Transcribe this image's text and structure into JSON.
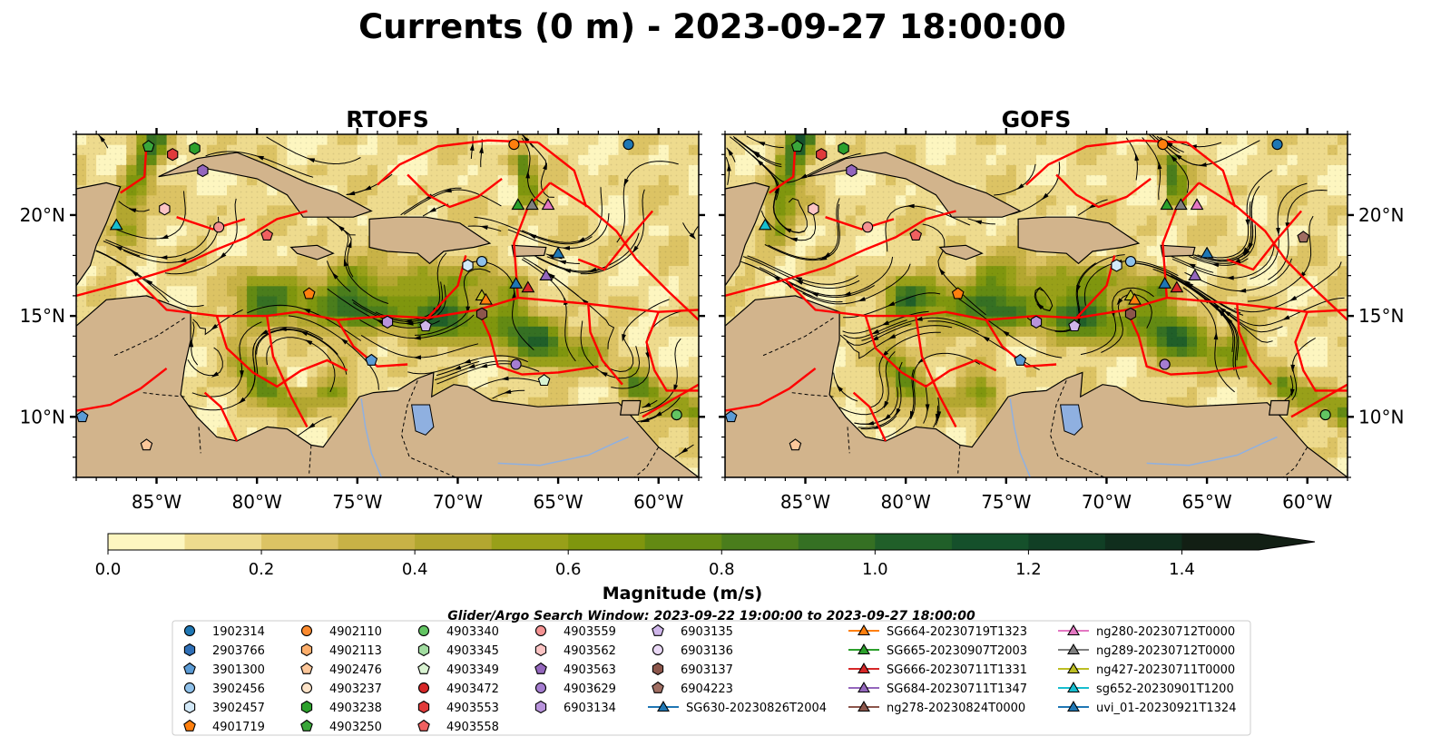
{
  "title": "Currents (0 m) - 2023-09-27 18:00:00",
  "colors": {
    "land": "#d2b48c",
    "river": "#8fb0e0",
    "eez": "#ff0000",
    "ramp": [
      "#fdf6c0",
      "#eedb8e",
      "#dcc364",
      "#c8b246",
      "#b3a730",
      "#98a019",
      "#7f960e",
      "#638a13",
      "#4a7d1c",
      "#357023",
      "#205f29",
      "#15502b",
      "#113f25",
      "#102e1d",
      "#121f14"
    ]
  },
  "chart_data": [
    {
      "type": "map",
      "title": "RTOFS",
      "xlim": [
        -89,
        -58
      ],
      "ylim": [
        7,
        24
      ],
      "x_ticks": [
        -85,
        -80,
        -75,
        -70,
        -65,
        -60
      ],
      "y_ticks": [
        10,
        15,
        20
      ],
      "x_tick_labels": [
        "85°W",
        "80°W",
        "75°W",
        "70°W",
        "65°W",
        "60°W"
      ],
      "y_tick_labels": [
        "10°N",
        "15°N",
        "20°N"
      ],
      "y_labels_side": "left"
    },
    {
      "type": "map",
      "title": "GOFS",
      "xlim": [
        -89,
        -58
      ],
      "ylim": [
        7,
        24
      ],
      "x_ticks": [
        -85,
        -80,
        -75,
        -70,
        -65,
        -60
      ],
      "y_ticks": [
        10,
        15,
        20
      ],
      "x_tick_labels": [
        "85°W",
        "80°W",
        "75°W",
        "70°W",
        "65°W",
        "60°W"
      ],
      "y_tick_labels": [
        "10°N",
        "15°N",
        "20°N"
      ],
      "y_labels_side": "right"
    }
  ],
  "colorbar": {
    "label": "Magnitude (m/s)",
    "vmin": 0.0,
    "vmax": 1.5,
    "extend": "max",
    "ticks": [
      0.0,
      0.2,
      0.4,
      0.6,
      0.8,
      1.0,
      1.2,
      1.4
    ],
    "tick_labels": [
      "0.0",
      "0.2",
      "0.4",
      "0.6",
      "0.8",
      "1.0",
      "1.2",
      "1.4"
    ]
  },
  "legend": {
    "title": "Glider/Argo Search Window: 2023-09-22 19:00:00 to 2023-09-27 18:00:00",
    "columns": [
      [
        {
          "label": "1902314",
          "marker": "circle",
          "color": "#1f77b4"
        },
        {
          "label": "2903766",
          "marker": "hexagon",
          "color": "#2f6fb6"
        },
        {
          "label": "3901300",
          "marker": "pentagon",
          "color": "#5b9bd5"
        },
        {
          "label": "3902456",
          "marker": "circle",
          "color": "#8fc1ea"
        },
        {
          "label": "3902457",
          "marker": "hexagon",
          "color": "#d3e9f8"
        },
        {
          "label": "4901719",
          "marker": "pentagon",
          "color": "#ff7f0e"
        }
      ],
      [
        {
          "label": "4902110",
          "marker": "circle",
          "color": "#fb8a2e"
        },
        {
          "label": "4902113",
          "marker": "hexagon",
          "color": "#fdae6b"
        },
        {
          "label": "4902476",
          "marker": "pentagon",
          "color": "#fdc79a"
        },
        {
          "label": "4903237",
          "marker": "circle",
          "color": "#fde3c8"
        },
        {
          "label": "4903238",
          "marker": "hexagon",
          "color": "#2ca02c"
        },
        {
          "label": "4903250",
          "marker": "pentagon",
          "color": "#3aa63a"
        }
      ],
      [
        {
          "label": "4903340",
          "marker": "circle",
          "color": "#62c462"
        },
        {
          "label": "4903345",
          "marker": "hexagon",
          "color": "#a1dca0"
        },
        {
          "label": "4903349",
          "marker": "pentagon",
          "color": "#d9f3d2"
        },
        {
          "label": "4903472",
          "marker": "circle",
          "color": "#d62728"
        },
        {
          "label": "4903553",
          "marker": "hexagon",
          "color": "#e03b3b"
        },
        {
          "label": "4903558",
          "marker": "pentagon",
          "color": "#f06060"
        }
      ],
      [
        {
          "label": "4903559",
          "marker": "circle",
          "color": "#f49393"
        },
        {
          "label": "4903562",
          "marker": "hexagon",
          "color": "#fbc4c4"
        },
        {
          "label": "4903563",
          "marker": "pentagon",
          "color": "#9467bd"
        },
        {
          "label": "4903629",
          "marker": "circle",
          "color": "#a57dd0"
        },
        {
          "label": "6903134",
          "marker": "hexagon",
          "color": "#b893db"
        }
      ],
      [
        {
          "label": "6903135",
          "marker": "pentagon",
          "color": "#cfb6ea"
        },
        {
          "label": "6903136",
          "marker": "circle",
          "color": "#ead9f6"
        },
        {
          "label": "6903137",
          "marker": "hexagon",
          "color": "#8c564b"
        },
        {
          "label": "6904223",
          "marker": "pentagon",
          "color": "#a06e62"
        },
        {
          "label": "SG630-20230826T2004",
          "marker": "triangle-line",
          "color": "#1f77b4"
        }
      ],
      [
        {
          "label": "SG664-20230719T1323",
          "marker": "triangle-line",
          "color": "#ff7f0e"
        },
        {
          "label": "SG665-20230907T2003",
          "marker": "triangle-line",
          "color": "#2ca02c"
        },
        {
          "label": "SG666-20230711T1331",
          "marker": "triangle-line",
          "color": "#d62728"
        },
        {
          "label": "SG684-20230711T1347",
          "marker": "triangle-line",
          "color": "#9467bd"
        },
        {
          "label": "ng278-20230824T0000",
          "marker": "triangle-line",
          "color": "#8c564b"
        }
      ],
      [
        {
          "label": "ng280-20230712T0000",
          "marker": "triangle-line",
          "color": "#e377c2"
        },
        {
          "label": "ng289-20230712T0000",
          "marker": "triangle-line",
          "color": "#7f7f7f"
        },
        {
          "label": "ng427-20230711T0000",
          "marker": "triangle-line",
          "color": "#bcbd22"
        },
        {
          "label": "sg652-20230901T1200",
          "marker": "triangle-line",
          "color": "#17becf"
        },
        {
          "label": "uvi_01-20230921T1324",
          "marker": "triangle-line",
          "color": "#1f77b4"
        }
      ]
    ]
  }
}
